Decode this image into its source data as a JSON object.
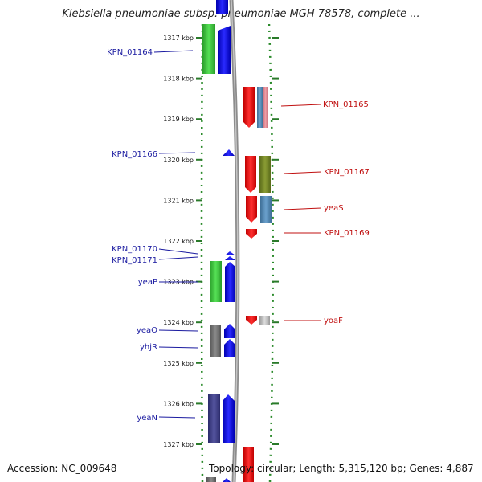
{
  "title": "Klebsiella pneumoniae subsp. pneumoniae MGH 78578, complete ...",
  "accession_label": "Accession: NC_009648",
  "topology_label": "Topology: circular; Length: 5,315,120 bp; Genes: 4,887",
  "ticks": [
    "1317 kbp",
    "1318 kbp",
    "1319 kbp",
    "1320 kbp",
    "1321 kbp",
    "1322 kbp",
    "1323 kbp",
    "1324 kbp",
    "1325 kbp",
    "1326 kbp",
    "1327 kbp"
  ],
  "left_labels": [
    "KPN_01164",
    "KPN_01166",
    "KPN_01170",
    "KPN_01171",
    "yeaP",
    "yeaO",
    "yhjR",
    "yeaN"
  ],
  "right_labels": [
    "KPN_01165",
    "KPN_01167",
    "yeaS",
    "KPN_01169",
    "yoaF"
  ],
  "colors": {
    "forward": "#0000ee",
    "reverse": "#ee0000",
    "backbone": "#999999",
    "track_dots": "#228822",
    "label_left": "#1a1aa0",
    "label_right": "#c01010"
  }
}
